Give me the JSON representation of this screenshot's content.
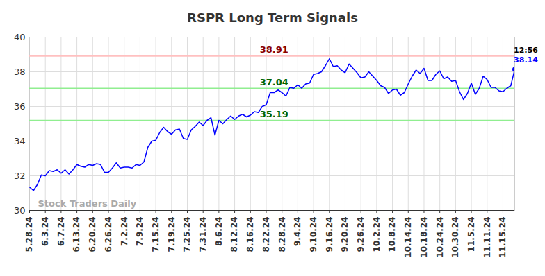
{
  "chart_data": {
    "type": "line",
    "title": "RSPR Long Term Signals",
    "color": "#0000ff",
    "grid": true,
    "ylim": [
      30,
      40
    ],
    "yticks": [
      30,
      32,
      34,
      36,
      38,
      40
    ],
    "categories": [
      "5.28.24",
      null,
      null,
      null,
      "6.3.24",
      null,
      null,
      null,
      "6.7.24",
      null,
      null,
      null,
      "6.13.24",
      null,
      null,
      null,
      "6.20.24",
      null,
      null,
      null,
      "6.26.24",
      null,
      null,
      null,
      "7.2.24",
      null,
      null,
      null,
      "7.9.24",
      null,
      null,
      null,
      "7.15.24",
      null,
      null,
      null,
      "7.19.24",
      null,
      null,
      null,
      "7.25.24",
      null,
      null,
      null,
      "7.31.24",
      null,
      null,
      null,
      "8.6.24",
      null,
      null,
      null,
      "8.12.24",
      null,
      null,
      null,
      "8.16.24",
      null,
      null,
      null,
      "8.22.24",
      null,
      null,
      null,
      "8.28.24",
      null,
      null,
      null,
      "9.4.24",
      null,
      null,
      null,
      "9.10.24",
      null,
      null,
      null,
      "9.16.24",
      null,
      null,
      null,
      "9.20.24",
      null,
      null,
      null,
      "9.26.24",
      null,
      null,
      null,
      "10.2.24",
      null,
      null,
      null,
      "10.8.24",
      null,
      null,
      null,
      "10.14.24",
      null,
      null,
      null,
      "10.18.24",
      null,
      null,
      null,
      "10.24.24",
      null,
      null,
      null,
      "10.30.24",
      null,
      null,
      null,
      "11.5.24",
      null,
      null,
      null,
      "11.11.24",
      null,
      null,
      null,
      "11.15.24",
      null,
      null,
      null
    ],
    "values": [
      31.35,
      31.15,
      31.5,
      32.05,
      32.0,
      32.3,
      32.25,
      32.35,
      32.15,
      32.35,
      32.1,
      32.35,
      32.65,
      32.55,
      32.5,
      32.65,
      32.6,
      32.7,
      32.65,
      32.2,
      32.2,
      32.45,
      32.75,
      32.45,
      32.5,
      32.5,
      32.45,
      32.65,
      32.6,
      32.8,
      33.65,
      34.0,
      34.05,
      34.5,
      34.8,
      34.55,
      34.4,
      34.65,
      34.7,
      34.15,
      34.1,
      34.65,
      34.85,
      35.1,
      34.9,
      35.2,
      35.35,
      34.35,
      35.2,
      35.0,
      35.25,
      35.45,
      35.25,
      35.45,
      35.55,
      35.4,
      35.5,
      35.7,
      35.65,
      36.0,
      36.1,
      36.8,
      36.8,
      36.95,
      36.8,
      36.6,
      37.1,
      37.05,
      37.25,
      37.05,
      37.3,
      37.35,
      37.85,
      37.9,
      38.0,
      38.35,
      38.75,
      38.3,
      38.35,
      38.1,
      37.95,
      38.45,
      38.2,
      37.95,
      37.65,
      37.7,
      38.0,
      37.75,
      37.5,
      37.2,
      37.1,
      36.75,
      36.95,
      37.0,
      36.65,
      36.8,
      37.3,
      37.75,
      38.1,
      37.9,
      38.2,
      37.5,
      37.5,
      37.85,
      38.05,
      37.6,
      37.7,
      37.45,
      37.5,
      36.85,
      36.4,
      36.75,
      37.35,
      36.7,
      37.05,
      37.75,
      37.55,
      37.1,
      37.1,
      36.9,
      36.85,
      37.05,
      37.2,
      38.14
    ],
    "reference_lines": [
      {
        "value": 38.91,
        "color": "#ffc0c0",
        "text_color": "#8b0000"
      },
      {
        "value": 37.04,
        "color": "#90ee90",
        "text_color": "#006400"
      },
      {
        "value": 35.19,
        "color": "#90ee90",
        "text_color": "#006400"
      }
    ],
    "time_label": "12:56",
    "watermark": "Stock Traders Daily"
  }
}
